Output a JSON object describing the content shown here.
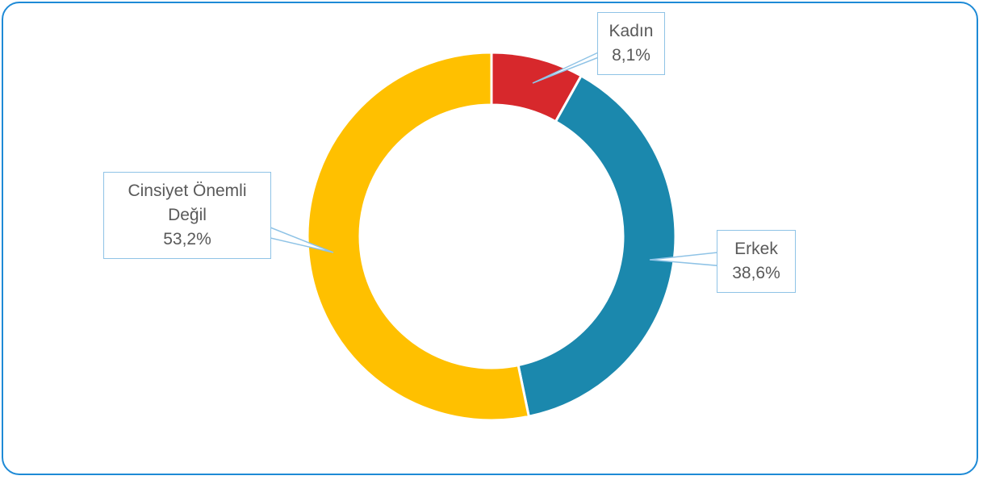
{
  "chart_data": {
    "type": "pie",
    "donut": true,
    "categories": [
      "Kadın",
      "Erkek",
      "Cinsiyet Önemli Değil"
    ],
    "values": [
      8.1,
      38.6,
      53.2
    ],
    "value_labels": [
      "8,1%",
      "38,6%",
      "53,2%"
    ],
    "colors": [
      "#d7282c",
      "#1b88ad",
      "#ffc000"
    ]
  }
}
